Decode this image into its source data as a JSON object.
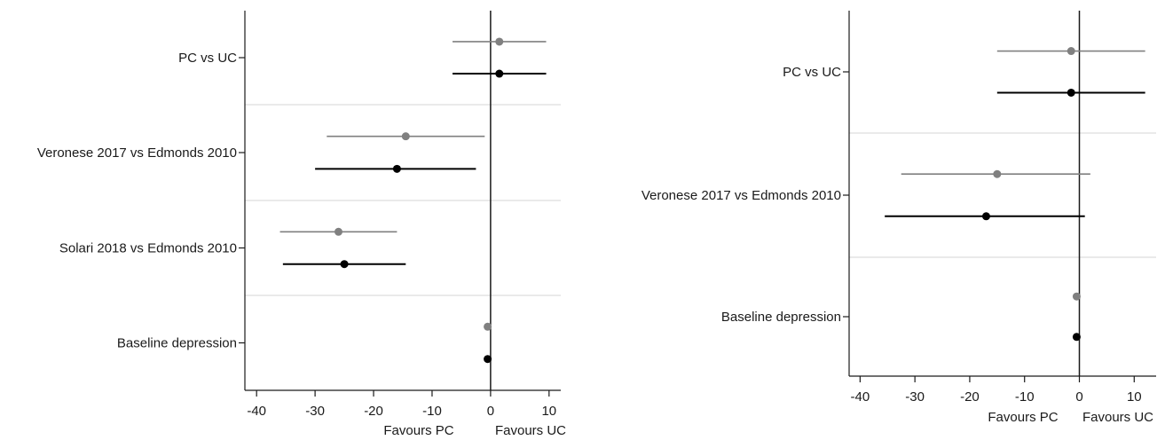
{
  "chart_data": [
    {
      "type": "forest",
      "xlim": [
        -42,
        12
      ],
      "xticks": [
        -40,
        -30,
        -20,
        -10,
        0,
        10
      ],
      "xtick_labels": [
        "-40",
        "-30",
        "-20",
        "-10",
        "0",
        "10"
      ],
      "direction_labels": {
        "left": "Favours PC",
        "right": "Favours UC"
      },
      "reference_line": 0,
      "series_colors": [
        "#808080",
        "#000000"
      ],
      "groups": [
        {
          "label": "PC vs UC",
          "estimates": [
            {
              "series": 0,
              "est": 1.5,
              "lo": -6.5,
              "hi": 9.5
            },
            {
              "series": 1,
              "est": 1.5,
              "lo": -6.5,
              "hi": 9.5
            }
          ]
        },
        {
          "label": "Veronese 2017 vs Edmonds 2010",
          "estimates": [
            {
              "series": 0,
              "est": -14.5,
              "lo": -28,
              "hi": -1
            },
            {
              "series": 1,
              "est": -16,
              "lo": -30,
              "hi": -2.5
            }
          ]
        },
        {
          "label": "Solari 2018 vs Edmonds 2010",
          "estimates": [
            {
              "series": 0,
              "est": -26,
              "lo": -36,
              "hi": -16
            },
            {
              "series": 1,
              "est": -25,
              "lo": -35.5,
              "hi": -14.5
            }
          ]
        },
        {
          "label": "Baseline depression",
          "estimates": [
            {
              "series": 0,
              "est": -0.5,
              "lo": -0.7,
              "hi": -0.3
            },
            {
              "series": 1,
              "est": -0.5,
              "lo": -0.7,
              "hi": -0.3
            }
          ]
        }
      ]
    },
    {
      "type": "forest",
      "xlim": [
        -42,
        14
      ],
      "xticks": [
        -40,
        -30,
        -20,
        -10,
        0,
        10
      ],
      "xtick_labels": [
        "-40",
        "-30",
        "-20",
        "-10",
        "0",
        "10"
      ],
      "direction_labels": {
        "left": "Favours PC",
        "right": "Favours UC"
      },
      "reference_line": 0,
      "series_colors": [
        "#808080",
        "#000000"
      ],
      "groups": [
        {
          "label": "PC vs UC",
          "estimates": [
            {
              "series": 0,
              "est": -1.5,
              "lo": -15,
              "hi": 12
            },
            {
              "series": 1,
              "est": -1.5,
              "lo": -15,
              "hi": 12
            }
          ]
        },
        {
          "label": "Veronese 2017 vs Edmonds 2010",
          "estimates": [
            {
              "series": 0,
              "est": -15,
              "lo": -32.5,
              "hi": 2
            },
            {
              "series": 1,
              "est": -17,
              "lo": -35.5,
              "hi": 1
            }
          ]
        },
        {
          "label": "Baseline depression",
          "estimates": [
            {
              "series": 0,
              "est": -0.5,
              "lo": -0.7,
              "hi": -0.3
            },
            {
              "series": 1,
              "est": -0.5,
              "lo": -0.7,
              "hi": -0.3
            }
          ]
        }
      ]
    }
  ]
}
